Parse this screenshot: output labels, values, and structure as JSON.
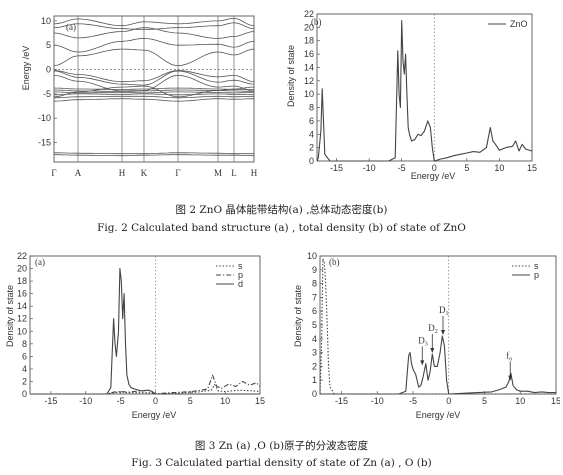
{
  "figure2": {
    "caption_cn": "图 2   ZnO 晶体能带结构(a) ,总体动态密度(b)",
    "caption_en": "Fig. 2   Calculated band structure (a) , total density (b) of state of ZnO"
  },
  "figure3": {
    "caption_cn": "图 3   Zn (a) ,O (b)原子的分波态密度",
    "caption_en": "Fig. 3   Calculated partial density of state of Zn (a) , O (b)"
  },
  "chart_data": [
    {
      "id": "fig2a",
      "type": "line",
      "panel_label": "(a)",
      "xlabel": "",
      "ylabel": "Energy /eV",
      "ylim": [
        -19,
        11
      ],
      "y_ticks": [
        10,
        5,
        0,
        -5,
        -10,
        -15
      ],
      "k_labels": [
        "Γ",
        "A",
        "H",
        "K",
        "Γ",
        "M",
        "L",
        "H"
      ],
      "k_positions": [
        0,
        0.12,
        0.34,
        0.45,
        0.62,
        0.82,
        0.9,
        1.0
      ]
    },
    {
      "id": "fig2b",
      "type": "line",
      "panel_label": "(b)",
      "xlabel": "Energy /eV",
      "ylabel": "Density of state",
      "xlim": [
        -18,
        15
      ],
      "ylim": [
        0,
        22
      ],
      "x_ticks": [
        -15,
        -10,
        -5,
        0,
        5,
        10,
        15
      ],
      "y_ticks": [
        0,
        2,
        4,
        6,
        8,
        10,
        12,
        14,
        16,
        18,
        20,
        22
      ],
      "legend": "top-right",
      "series": [
        {
          "name": "ZnO",
          "style": "solid",
          "x": [
            -18,
            -17.8,
            -17.4,
            -17.2,
            -17.0,
            -16.8,
            -16.0,
            -7,
            -6.0,
            -5.6,
            -5.4,
            -5.2,
            -5.0,
            -4.8,
            -4.6,
            -4.4,
            -4.2,
            -4.0,
            -3.8,
            -3.5,
            -3,
            -2.5,
            -2,
            -1.5,
            -1.0,
            -0.6,
            -0.3,
            0,
            1,
            2,
            3,
            4,
            5,
            6,
            7,
            8,
            8.6,
            9.0,
            9.4,
            10,
            11,
            12,
            12.5,
            13,
            13.5,
            14,
            15
          ],
          "y": [
            0,
            0.5,
            4.5,
            10.8,
            6,
            1,
            0,
            0,
            0.5,
            16.5,
            10,
            8,
            21,
            15,
            13,
            16,
            10,
            5,
            4,
            3,
            3.2,
            4,
            3.8,
            4.5,
            6,
            5,
            2,
            0,
            0.3,
            0.5,
            0.8,
            1.0,
            1.2,
            1.4,
            1.3,
            2,
            5,
            3,
            2.5,
            1.6,
            2,
            2.2,
            3,
            1.5,
            2.5,
            1.8,
            1.5
          ]
        }
      ]
    },
    {
      "id": "fig3a",
      "type": "line",
      "panel_label": "(a)",
      "xlabel": "Energy /eV",
      "ylabel": "Density of state",
      "xlim": [
        -18,
        15
      ],
      "ylim": [
        0,
        22
      ],
      "x_ticks": [
        -15,
        -10,
        -5,
        0,
        5,
        10,
        15
      ],
      "y_ticks": [
        0,
        2,
        4,
        6,
        8,
        10,
        12,
        14,
        16,
        18,
        20,
        22
      ],
      "legend": "top-right",
      "series": [
        {
          "name": "s",
          "style": "dotted",
          "x": [
            -18,
            -7,
            -6,
            -5,
            -4,
            -3,
            -2,
            -1,
            0,
            2,
            4,
            6,
            8,
            8.5,
            9,
            10,
            12,
            14,
            15
          ],
          "y": [
            0,
            0,
            0.2,
            0.3,
            0.2,
            0.2,
            0.2,
            0.2,
            0,
            0.1,
            0.2,
            0.3,
            0.6,
            1.5,
            0.5,
            0.4,
            0.6,
            0.5,
            0.4
          ]
        },
        {
          "name": "p",
          "style": "dashdot",
          "x": [
            -18,
            -7,
            -6,
            -5,
            -4,
            -3,
            -2,
            -1,
            0,
            2,
            4,
            6,
            7.5,
            8.2,
            8.8,
            9.5,
            10.5,
            11.5,
            12.5,
            13.5,
            14.5,
            15
          ],
          "y": [
            0,
            0,
            0.3,
            0.4,
            0.3,
            0.4,
            0.5,
            0.6,
            0,
            0.2,
            0.3,
            0.5,
            0.8,
            3.0,
            1.2,
            0.9,
            1.6,
            1.2,
            2.0,
            1.4,
            1.8,
            1.2
          ]
        },
        {
          "name": "d",
          "style": "solid",
          "x": [
            -18,
            -7,
            -6.4,
            -6.0,
            -5.8,
            -5.6,
            -5.3,
            -5.1,
            -4.9,
            -4.7,
            -4.5,
            -4.3,
            -4.1,
            -3.8,
            -3.5,
            -3,
            -2,
            -1,
            -0.5,
            0,
            15
          ],
          "y": [
            0,
            0,
            1,
            12,
            8,
            6,
            10,
            20,
            18,
            12,
            16,
            8,
            3,
            1.5,
            1,
            0.8,
            0.5,
            0.6,
            0.4,
            0,
            0
          ]
        }
      ]
    },
    {
      "id": "fig3b",
      "type": "line",
      "panel_label": "(b)",
      "xlabel": "Energy /eV",
      "ylabel": "Density of state",
      "xlim": [
        -18,
        15
      ],
      "ylim": [
        0,
        10
      ],
      "x_ticks": [
        -15,
        -10,
        -5,
        0,
        5,
        10,
        15
      ],
      "y_ticks": [
        0,
        1,
        2,
        3,
        4,
        5,
        6,
        7,
        8,
        9,
        10
      ],
      "legend": "top-right",
      "annotations": [
        {
          "label": "D",
          "sub": "1",
          "x": -0.8,
          "y": 4.2
        },
        {
          "label": "D",
          "sub": "2",
          "x": -2.3,
          "y": 2.9
        },
        {
          "label": "D",
          "sub": "3",
          "x": -3.7,
          "y": 2.0
        },
        {
          "label": "f",
          "sub": "o",
          "x": 8.6,
          "y": 0.9
        }
      ],
      "series": [
        {
          "name": "s",
          "style": "dotted",
          "x": [
            -18,
            -17.8,
            -17.6,
            -17.4,
            -17.2,
            -17.0,
            -16.8,
            -16.6,
            -16.0,
            15
          ],
          "y": [
            0,
            3,
            9.8,
            9.5,
            8,
            5,
            2,
            0.5,
            0,
            0
          ]
        },
        {
          "name": "p",
          "style": "solid",
          "x": [
            -18,
            -7,
            -6,
            -5.8,
            -5.6,
            -5.4,
            -5.2,
            -5.0,
            -4.6,
            -4.2,
            -3.9,
            -3.6,
            -3.2,
            -2.9,
            -2.6,
            -2.3,
            -2.0,
            -1.6,
            -1.2,
            -0.9,
            -0.6,
            -0.3,
            0,
            2,
            4,
            6,
            7,
            8,
            8.4,
            8.7,
            9.0,
            9.5,
            10,
            11,
            12,
            13,
            14,
            15
          ],
          "y": [
            0,
            0,
            0.2,
            1.5,
            2.8,
            3.0,
            2.2,
            1.8,
            1.4,
            0.5,
            0.6,
            1.2,
            2.2,
            1.0,
            1.6,
            2.9,
            2.0,
            2.0,
            3.0,
            4.2,
            3.5,
            1.0,
            0,
            0.05,
            0.1,
            0.15,
            0.3,
            0.5,
            0.9,
            1.5,
            0.6,
            0.3,
            0.2,
            0.2,
            0.1,
            0.15,
            0.1,
            0.1
          ]
        }
      ]
    }
  ]
}
